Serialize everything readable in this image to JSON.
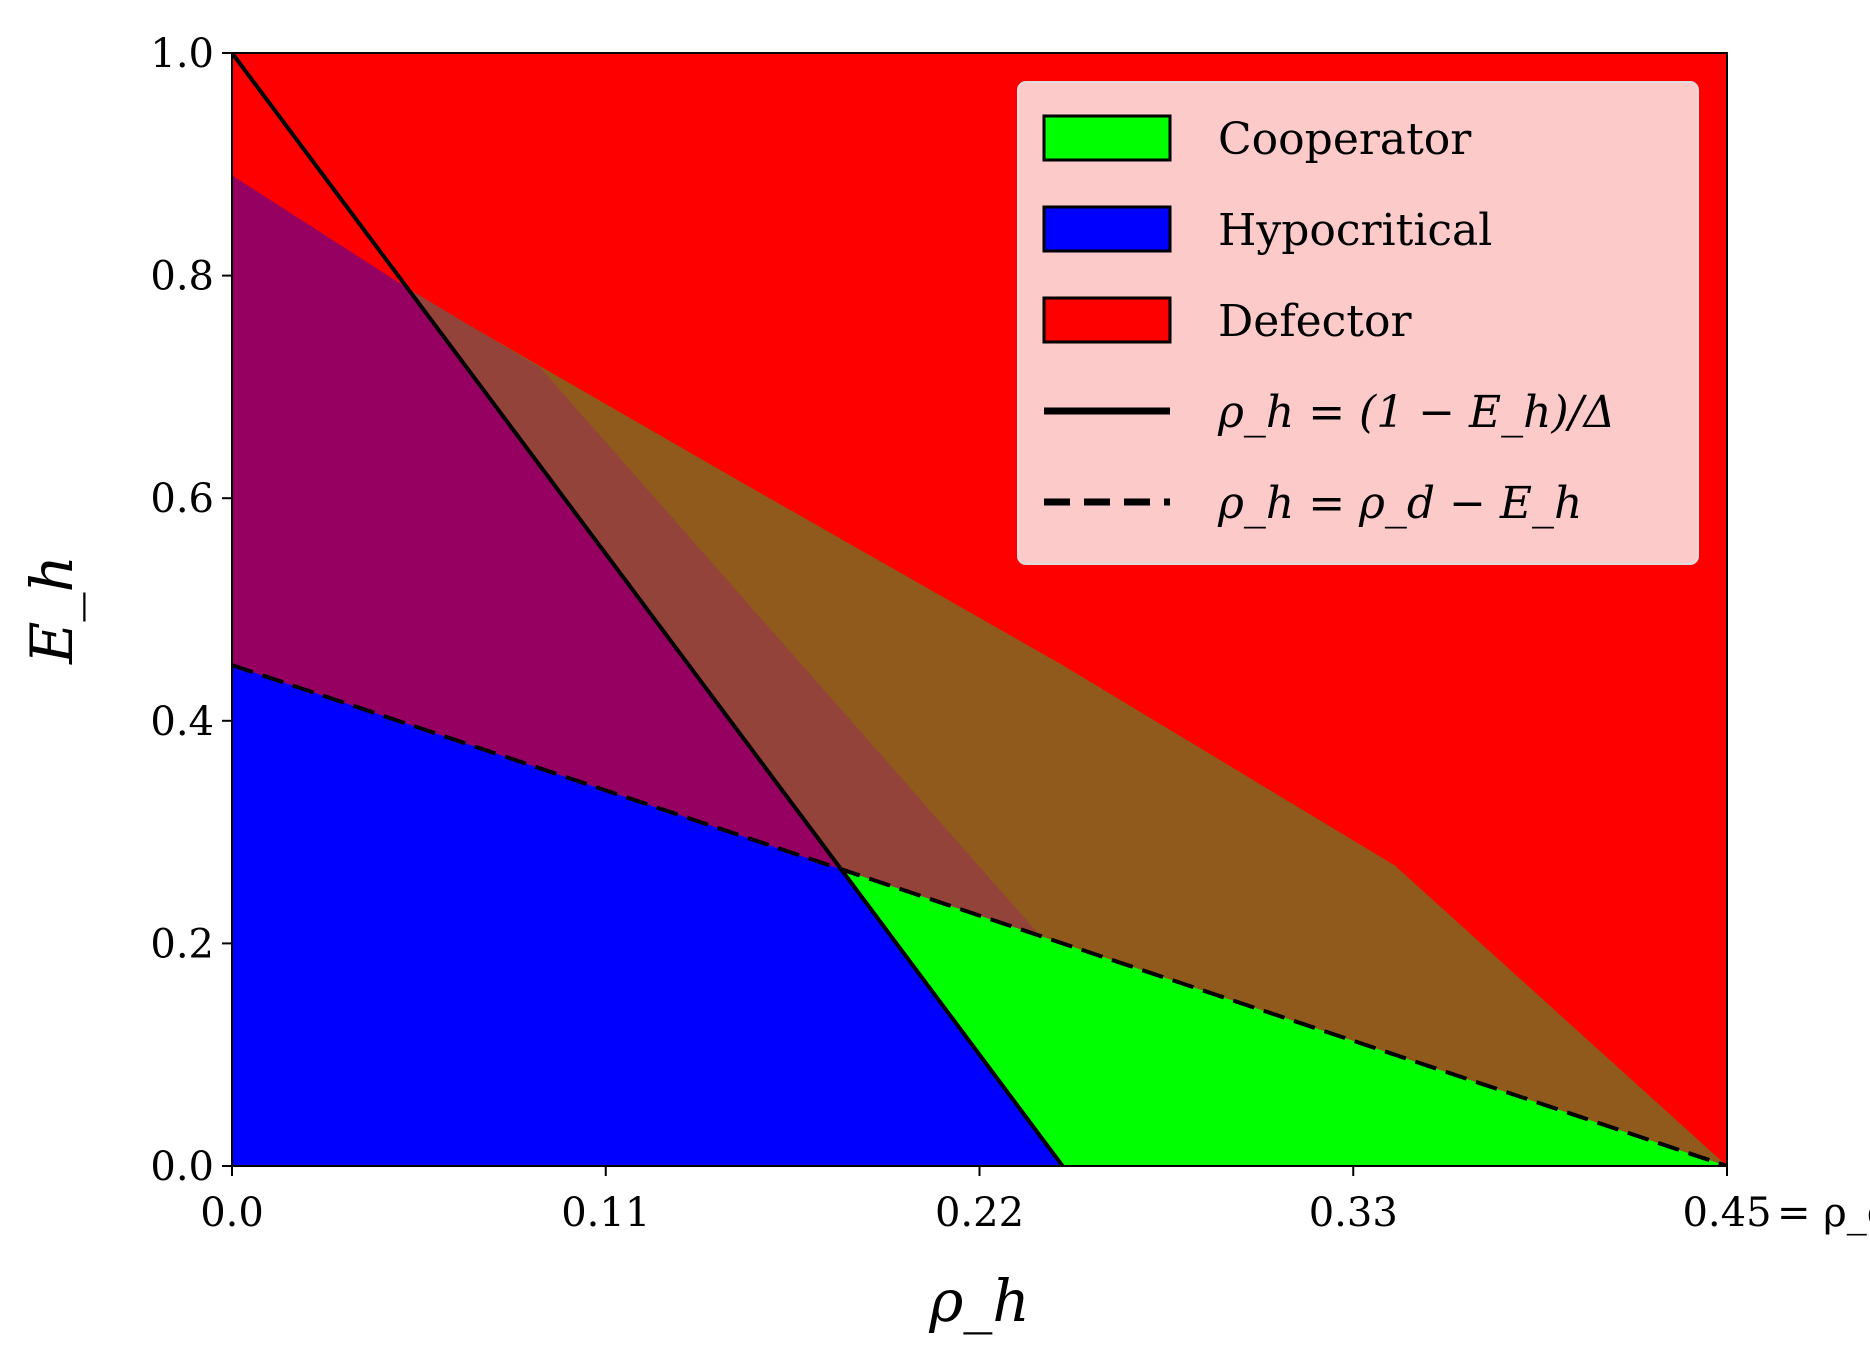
{
  "chart_data": {
    "type": "heatmap",
    "title": "",
    "xlabel": "ρ_h",
    "ylabel": "E_h",
    "xlim": [
      0,
      0.45
    ],
    "ylim": [
      0,
      1.0
    ],
    "x_ticks": [
      {
        "value": 0.0,
        "label": "0.0"
      },
      {
        "value": 0.1125,
        "label": "0.11"
      },
      {
        "value": 0.225,
        "label": "0.22"
      },
      {
        "value": 0.3375,
        "label": "0.33"
      },
      {
        "value": 0.45,
        "label": "0.45"
      }
    ],
    "x_tick_end_suffix": "= ρ_d",
    "y_ticks": [
      {
        "value": 0.0,
        "label": "0.0"
      },
      {
        "value": 0.2,
        "label": "0.2"
      },
      {
        "value": 0.4,
        "label": "0.4"
      },
      {
        "value": 0.6,
        "label": "0.6"
      },
      {
        "value": 0.8,
        "label": "0.8"
      },
      {
        "value": 1.0,
        "label": "1.0"
      }
    ],
    "parameters": {
      "rho_d": 0.45,
      "Delta": 4.0
    },
    "regions": [
      {
        "name": "Cooperator",
        "color": "#00ff00"
      },
      {
        "name": "Hypocritical",
        "color": "#0000ff"
      },
      {
        "name": "Defector",
        "color": "#ff0000"
      }
    ],
    "mixed_region_colors": {
      "hypocritical_defector_mix": "#960060",
      "cooperator_defector_mix": "#8f5a1c",
      "center_mix": "#93433a"
    },
    "lines": [
      {
        "name": "ρ_h = (1 − E_h)/Δ",
        "style": "solid",
        "points": [
          [
            0.0,
            1.0
          ],
          [
            0.25,
            0.0
          ]
        ]
      },
      {
        "name": "ρ_h = ρ_d − E_h",
        "style": "dashed",
        "points": [
          [
            0.0,
            0.45
          ],
          [
            0.45,
            0.0
          ]
        ]
      }
    ],
    "boundaries": {
      "purple_region_top_start": [
        0.0,
        0.89
      ],
      "outer_mixed_boundary": [
        [
          0.0,
          0.89
        ],
        [
          0.06,
          0.775
        ],
        [
          0.15,
          0.62
        ],
        [
          0.25,
          0.45
        ],
        [
          0.35,
          0.27
        ],
        [
          0.45,
          0.0
        ]
      ]
    },
    "legend": {
      "position": "top-right",
      "entries": [
        {
          "label": "Cooperator",
          "kind": "patch",
          "color": "#00ff00"
        },
        {
          "label": "Hypocritical",
          "kind": "patch",
          "color": "#0000ff"
        },
        {
          "label": "Defector",
          "kind": "patch",
          "color": "#ff0000"
        },
        {
          "label": "ρ_h = (1 − E_h)/Δ",
          "kind": "solid-line",
          "color": "#000000"
        },
        {
          "label": "ρ_h = ρ_d − E_h",
          "kind": "dashed-line",
          "color": "#000000"
        }
      ]
    }
  }
}
